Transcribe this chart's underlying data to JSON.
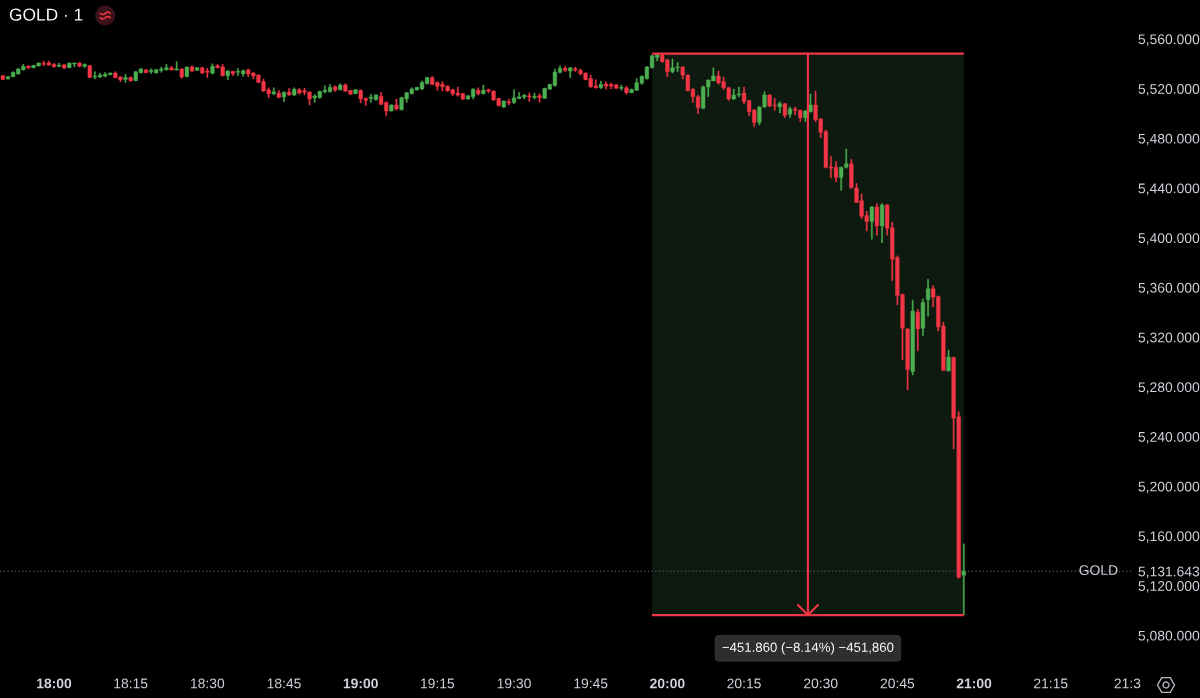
{
  "chart_data": {
    "type": "candlestick",
    "title": "GOLD · 1",
    "x": [
      17.8333,
      17.85,
      17.8667,
      17.8833,
      17.9,
      17.9167,
      17.9333,
      17.95,
      17.9667,
      17.9833,
      18,
      18.0167,
      18.0333,
      18.05,
      18.0667,
      18.0833,
      18.1,
      18.1167,
      18.1333,
      18.15,
      18.1667,
      18.1833,
      18.2,
      18.2167,
      18.2333,
      18.25,
      18.2667,
      18.2833,
      18.3,
      18.3167,
      18.3333,
      18.35,
      18.3667,
      18.3833,
      18.4,
      18.4167,
      18.4333,
      18.45,
      18.4667,
      18.4833,
      18.5,
      18.5167,
      18.5333,
      18.55,
      18.5667,
      18.5833,
      18.6,
      18.6167,
      18.6333,
      18.65,
      18.6667,
      18.6833,
      18.7,
      18.7167,
      18.7333,
      18.75,
      18.7667,
      18.7833,
      18.8,
      18.8167,
      18.8333,
      18.85,
      18.8667,
      18.8833,
      18.9,
      18.9167,
      18.9333,
      18.95,
      18.9667,
      18.9833,
      19,
      19.0167,
      19.0333,
      19.05,
      19.0667,
      19.0833,
      19.1,
      19.1167,
      19.1333,
      19.15,
      19.1667,
      19.1833,
      19.2,
      19.2167,
      19.2333,
      19.25,
      19.2667,
      19.2833,
      19.3,
      19.3167,
      19.3333,
      19.35,
      19.3667,
      19.3833,
      19.4,
      19.4167,
      19.4333,
      19.45,
      19.4667,
      19.4833,
      19.5,
      19.5167,
      19.5333,
      19.55,
      19.5667,
      19.5833,
      19.6,
      19.6167,
      19.6333,
      19.65,
      19.6667,
      19.6833,
      19.7,
      19.7167,
      19.7333,
      19.75,
      19.7667,
      19.7833,
      19.8,
      19.8167,
      19.8333,
      19.85,
      19.8667,
      19.8833,
      19.9,
      19.9167,
      19.9333,
      19.95,
      19.9667,
      19.9833,
      20,
      20.0167,
      20.0333,
      20.05,
      20.0667,
      20.0833,
      20.1,
      20.1167,
      20.1333,
      20.15,
      20.1667,
      20.1833,
      20.2,
      20.2167,
      20.2333,
      20.25,
      20.2667,
      20.2833,
      20.3,
      20.3167,
      20.3333,
      20.35,
      20.3667,
      20.3833,
      20.4,
      20.4167,
      20.4333,
      20.45,
      20.4667,
      20.4833,
      20.5,
      20.5167,
      20.5333,
      20.55,
      20.5667,
      20.5833,
      20.6,
      20.6167,
      20.6333,
      20.65,
      20.6667,
      20.6833,
      20.7,
      20.7167,
      20.7333,
      20.75,
      20.7667,
      20.7833,
      20.8,
      20.8167,
      20.8333,
      20.85,
      20.8667,
      20.8833,
      20.9,
      20.9167,
      20.9333,
      20.95,
      20.9667
    ],
    "ohlc": [
      [
        5530.5,
        5531.0,
        5527.0,
        5527.5
      ],
      [
        5528.1,
        5530.2,
        5527.5,
        5529.7
      ],
      [
        5529.7,
        5533.7,
        5529.4,
        5533.2
      ],
      [
        5531.8,
        5536.4,
        5531.6,
        5535.9
      ],
      [
        5535.3,
        5539.6,
        5534.8,
        5538.0
      ],
      [
        5538.3,
        5538.5,
        5535.9,
        5536.9
      ],
      [
        5536.9,
        5539.1,
        5536.7,
        5538.8
      ],
      [
        5538.3,
        5540.9,
        5538.0,
        5540.7
      ],
      [
        5540.4,
        5542.3,
        5538.5,
        5539.6
      ],
      [
        5540.9,
        5542.3,
        5538.5,
        5539.1
      ],
      [
        5539.6,
        5540.4,
        5537.2,
        5537.7
      ],
      [
        5538.0,
        5540.7,
        5537.5,
        5539.1
      ],
      [
        5539.3,
        5539.6,
        5535.9,
        5536.7
      ],
      [
        5536.9,
        5540.9,
        5536.7,
        5540.7
      ],
      [
        5539.9,
        5540.9,
        5537.5,
        5540.7
      ],
      [
        5540.7,
        5541.2,
        5537.5,
        5538.0
      ],
      [
        5538.0,
        5540.1,
        5536.9,
        5539.6
      ],
      [
        5538.5,
        5539.1,
        5528.9,
        5529.1
      ],
      [
        5529.4,
        5533.7,
        5527.8,
        5530.2
      ],
      [
        5529.4,
        5532.6,
        5528.9,
        5531.0
      ],
      [
        5530.0,
        5533.2,
        5529.4,
        5531.6
      ],
      [
        5531.3,
        5532.9,
        5531.0,
        5532.6
      ],
      [
        5532.6,
        5533.7,
        5528.6,
        5528.9
      ],
      [
        5529.4,
        5530.0,
        5525.7,
        5527.3
      ],
      [
        5527.5,
        5531.6,
        5525.1,
        5529.1
      ],
      [
        5529.1,
        5529.7,
        5525.7,
        5526.5
      ],
      [
        5526.5,
        5534.0,
        5526.2,
        5533.7
      ],
      [
        5532.9,
        5536.4,
        5532.4,
        5535.9
      ],
      [
        5535.3,
        5535.6,
        5532.6,
        5532.9
      ],
      [
        5533.7,
        5536.1,
        5532.1,
        5534.8
      ],
      [
        5532.6,
        5535.6,
        5532.4,
        5535.3
      ],
      [
        5534.8,
        5537.5,
        5533.2,
        5535.9
      ],
      [
        5535.3,
        5539.6,
        5534.8,
        5536.9
      ],
      [
        5536.9,
        5538.0,
        5534.8,
        5535.0
      ],
      [
        5535.0,
        5541.8,
        5534.8,
        5535.9
      ],
      [
        5535.9,
        5536.4,
        5528.3,
        5529.4
      ],
      [
        5529.7,
        5537.7,
        5529.4,
        5537.5
      ],
      [
        5537.5,
        5538.5,
        5533.7,
        5534.2
      ],
      [
        5534.8,
        5537.2,
        5534.5,
        5536.9
      ],
      [
        5536.9,
        5537.5,
        5532.1,
        5532.6
      ],
      [
        5534.2,
        5536.4,
        5528.9,
        5533.2
      ],
      [
        5532.4,
        5540.1,
        5531.8,
        5538.0
      ],
      [
        5538.5,
        5539.6,
        5536.4,
        5536.9
      ],
      [
        5537.5,
        5539.6,
        5530.0,
        5530.5
      ],
      [
        5530.5,
        5534.8,
        5527.3,
        5534.2
      ],
      [
        5534.0,
        5534.2,
        5530.5,
        5532.1
      ],
      [
        5533.2,
        5536.4,
        5530.5,
        5534.0
      ],
      [
        5532.1,
        5535.3,
        5530.0,
        5534.5
      ],
      [
        5535.3,
        5535.9,
        5529.7,
        5531.8
      ],
      [
        5532.6,
        5533.2,
        5527.8,
        5530.2
      ],
      [
        5531.0,
        5531.3,
        5524.9,
        5525.1
      ],
      [
        5525.7,
        5527.8,
        5517.6,
        5518.1
      ],
      [
        5519.2,
        5520.8,
        5512.8,
        5516.0
      ],
      [
        5516.0,
        5520.8,
        5514.9,
        5517.6
      ],
      [
        5516.5,
        5518.7,
        5512.5,
        5513.0
      ],
      [
        5513.3,
        5517.6,
        5509.6,
        5517.1
      ],
      [
        5517.3,
        5520.3,
        5514.4,
        5515.2
      ],
      [
        5514.9,
        5520.8,
        5514.4,
        5519.5
      ],
      [
        5519.2,
        5520.3,
        5515.5,
        5516.5
      ],
      [
        5518.4,
        5520.3,
        5514.9,
        5517.1
      ],
      [
        5517.3,
        5517.6,
        5506.9,
        5511.7
      ],
      [
        5512.8,
        5515.5,
        5509.0,
        5514.1
      ],
      [
        5513.0,
        5518.1,
        5512.2,
        5517.9
      ],
      [
        5517.6,
        5522.4,
        5516.5,
        5518.7
      ],
      [
        5517.6,
        5523.5,
        5517.1,
        5521.1
      ],
      [
        5521.6,
        5522.4,
        5517.6,
        5518.9
      ],
      [
        5519.2,
        5524.0,
        5518.7,
        5523.0
      ],
      [
        5523.0,
        5524.0,
        5517.6,
        5518.1
      ],
      [
        5518.7,
        5518.9,
        5515.2,
        5515.5
      ],
      [
        5516.0,
        5519.5,
        5515.7,
        5519.2
      ],
      [
        5518.7,
        5519.2,
        5508.5,
        5511.7
      ],
      [
        5512.2,
        5512.8,
        5506.4,
        5510.6
      ],
      [
        5512.2,
        5515.5,
        5509.0,
        5513.3
      ],
      [
        5511.2,
        5515.5,
        5510.6,
        5514.9
      ],
      [
        5513.9,
        5517.1,
        5506.9,
        5507.4
      ],
      [
        5509.0,
        5509.6,
        5498.3,
        5502.1
      ],
      [
        5502.1,
        5507.2,
        5501.8,
        5506.9
      ],
      [
        5506.9,
        5511.7,
        5502.6,
        5503.7
      ],
      [
        5503.1,
        5513.3,
        5502.6,
        5512.8
      ],
      [
        5511.7,
        5517.1,
        5509.0,
        5516.8
      ],
      [
        5516.0,
        5520.8,
        5515.5,
        5519.8
      ],
      [
        5518.9,
        5521.4,
        5518.7,
        5521.1
      ],
      [
        5519.8,
        5526.2,
        5519.2,
        5525.1
      ],
      [
        5524.0,
        5529.4,
        5523.8,
        5529.1
      ],
      [
        5528.9,
        5530.0,
        5523.0,
        5523.5
      ],
      [
        5525.1,
        5525.7,
        5518.7,
        5521.9
      ],
      [
        5523.5,
        5525.7,
        5518.1,
        5521.6
      ],
      [
        5522.2,
        5522.4,
        5517.9,
        5518.1
      ],
      [
        5519.2,
        5519.8,
        5514.4,
        5516.0
      ],
      [
        5516.5,
        5521.4,
        5513.9,
        5514.9
      ],
      [
        5516.0,
        5516.5,
        5511.2,
        5511.7
      ],
      [
        5511.7,
        5514.7,
        5511.4,
        5514.4
      ],
      [
        5513.6,
        5520.3,
        5511.7,
        5519.5
      ],
      [
        5518.7,
        5520.8,
        5514.9,
        5516.0
      ],
      [
        5516.0,
        5523.0,
        5515.5,
        5518.7
      ],
      [
        5519.2,
        5519.8,
        5516.5,
        5518.1
      ],
      [
        5518.1,
        5518.4,
        5510.6,
        5510.9
      ],
      [
        5512.2,
        5512.5,
        5505.8,
        5506.4
      ],
      [
        5505.3,
        5510.4,
        5504.7,
        5510.1
      ],
      [
        5509.6,
        5511.7,
        5506.9,
        5508.5
      ],
      [
        5509.0,
        5519.2,
        5508.0,
        5512.8
      ],
      [
        5512.2,
        5517.1,
        5511.7,
        5513.6
      ],
      [
        5513.3,
        5515.5,
        5511.7,
        5514.7
      ],
      [
        5514.4,
        5516.8,
        5509.6,
        5513.3
      ],
      [
        5513.0,
        5516.5,
        5511.7,
        5513.9
      ],
      [
        5514.4,
        5516.0,
        5509.0,
        5512.8
      ],
      [
        5512.2,
        5520.6,
        5512.0,
        5520.3
      ],
      [
        5519.5,
        5523.8,
        5519.2,
        5523.5
      ],
      [
        5522.4,
        5535.9,
        5521.9,
        5533.4
      ],
      [
        5533.2,
        5538.5,
        5532.4,
        5536.4
      ],
      [
        5536.4,
        5538.0,
        5533.7,
        5534.8
      ],
      [
        5534.2,
        5537.2,
        5528.9,
        5536.9
      ],
      [
        5536.1,
        5537.5,
        5533.7,
        5535.0
      ],
      [
        5534.8,
        5535.9,
        5531.0,
        5532.1
      ],
      [
        5532.6,
        5532.9,
        5527.0,
        5527.3
      ],
      [
        5528.3,
        5531.0,
        5520.8,
        5521.6
      ],
      [
        5522.2,
        5527.3,
        5520.3,
        5520.8
      ],
      [
        5520.8,
        5526.2,
        5520.0,
        5523.5
      ],
      [
        5523.8,
        5525.7,
        5519.5,
        5521.9
      ],
      [
        5523.5,
        5524.6,
        5519.8,
        5521.9
      ],
      [
        5523.2,
        5523.5,
        5520.0,
        5520.3
      ],
      [
        5520.3,
        5523.0,
        5518.7,
        5521.1
      ],
      [
        5520.8,
        5521.9,
        5515.5,
        5516.8
      ],
      [
        5516.8,
        5519.8,
        5516.5,
        5519.5
      ],
      [
        5518.7,
        5528.3,
        5518.4,
        5524.9
      ],
      [
        5524.3,
        5530.5,
        5523.5,
        5530.0
      ],
      [
        5528.3,
        5538.0,
        5527.5,
        5537.5
      ],
      [
        5536.9,
        5547.1,
        5536.4,
        5546.6
      ],
      [
        5545.2,
        5548.3,
        5542.3,
        5547.9
      ],
      [
        5547.1,
        5547.7,
        5541.2,
        5541.8
      ],
      [
        5543.1,
        5543.9,
        5529.7,
        5533.7
      ],
      [
        5533.7,
        5543.9,
        5532.6,
        5536.9
      ],
      [
        5536.9,
        5541.2,
        5533.7,
        5537.5
      ],
      [
        5537.5,
        5538.0,
        5527.8,
        5531.0
      ],
      [
        5531.0,
        5531.3,
        5518.1,
        5518.4
      ],
      [
        5519.5,
        5520.3,
        5509.0,
        5513.6
      ],
      [
        5513.6,
        5514.9,
        5499.9,
        5504.7
      ],
      [
        5504.2,
        5522.4,
        5503.7,
        5521.4
      ],
      [
        5521.4,
        5527.3,
        5513.6,
        5527.0
      ],
      [
        5526.2,
        5536.9,
        5526.2,
        5530.2
      ],
      [
        5530.2,
        5534.2,
        5523.5,
        5524.9
      ],
      [
        5525.7,
        5529.4,
        5519.2,
        5520.8
      ],
      [
        5520.8,
        5521.4,
        5510.6,
        5511.7
      ],
      [
        5511.7,
        5519.8,
        5511.2,
        5514.9
      ],
      [
        5514.9,
        5521.4,
        5513.3,
        5515.7
      ],
      [
        5516.5,
        5521.4,
        5508.0,
        5509.6
      ],
      [
        5510.4,
        5510.9,
        5498.3,
        5501.5
      ],
      [
        5502.9,
        5503.4,
        5489.4,
        5492.9
      ],
      [
        5492.9,
        5505.8,
        5490.8,
        5505.3
      ],
      [
        5505.3,
        5517.6,
        5504.7,
        5514.9
      ],
      [
        5514.9,
        5515.5,
        5505.3,
        5506.1
      ],
      [
        5506.9,
        5512.2,
        5502.6,
        5506.4
      ],
      [
        5505.3,
        5509.6,
        5500.4,
        5508.2
      ],
      [
        5508.0,
        5508.5,
        5496.7,
        5498.6
      ],
      [
        5499.4,
        5505.3,
        5496.7,
        5503.7
      ],
      [
        5503.7,
        5505.3,
        5498.8,
        5502.6
      ],
      [
        5502.6,
        5503.1,
        5493.5,
        5496.7
      ],
      [
        5496.7,
        5502.6,
        5493.5,
        5502.1
      ],
      [
        5501.5,
        5515.7,
        5501.0,
        5506.9
      ],
      [
        5506.9,
        5518.1,
        5493.5,
        5495.1
      ],
      [
        5495.6,
        5496.1,
        5480.6,
        5484.9
      ],
      [
        5485.4,
        5486.8,
        5456.2,
        5456.8
      ],
      [
        5457.1,
        5465.4,
        5448.2,
        5456.0
      ],
      [
        5456.8,
        5461.5,
        5444.9,
        5448.5
      ],
      [
        5448.5,
        5457.1,
        5438.2,
        5456.8
      ],
      [
        5456.8,
        5471.5,
        5456.0,
        5459.6
      ],
      [
        5459.6,
        5463.2,
        5439.6,
        5440.4
      ],
      [
        5440.1,
        5443.7,
        5428.2,
        5428.5
      ],
      [
        5429.9,
        5435.4,
        5415.4,
        5417.4
      ],
      [
        5417.9,
        5421.5,
        5405.4,
        5413.2
      ],
      [
        5413.2,
        5425.4,
        5398.8,
        5424.9
      ],
      [
        5424.9,
        5427.6,
        5402.1,
        5409.6
      ],
      [
        5409.6,
        5427.6,
        5396.0,
        5426.5
      ],
      [
        5426.5,
        5427.1,
        5402.1,
        5407.7
      ],
      [
        5408.2,
        5412.7,
        5365.5,
        5382.7
      ],
      [
        5384.1,
        5385.5,
        5346.1,
        5353.5
      ],
      [
        5354.4,
        5354.9,
        5301.6,
        5327.2
      ],
      [
        5326.6,
        5327.2,
        5277.8,
        5293.9
      ],
      [
        5292.5,
        5349.9,
        5289.7,
        5341.1
      ],
      [
        5340.2,
        5342.4,
        5309.1,
        5326.6
      ],
      [
        5327.2,
        5350.8,
        5321.1,
        5348.0
      ],
      [
        5350.2,
        5366.6,
        5336.9,
        5359.1
      ],
      [
        5359.1,
        5361.6,
        5344.4,
        5352.2
      ],
      [
        5352.7,
        5353.3,
        5325.0,
        5328.3
      ],
      [
        5329.1,
        5332.2,
        5293.0,
        5293.3
      ],
      [
        5293.0,
        5309.7,
        5292.5,
        5304.1
      ],
      [
        5303.6,
        5304.1,
        5230.0,
        5255.0
      ],
      [
        5255.9,
        5260.0,
        5126.0,
        5126.8
      ],
      [
        5128.5,
        5153.7,
        5096.4,
        5131.643
      ]
    ],
    "colors": [
      "#f23645",
      "#4caf50",
      "#4caf50",
      "#4caf50",
      "#4caf50",
      "#f23645",
      "#4caf50",
      "#4caf50",
      "#f23645",
      "#f23645",
      "#f23645",
      "#4caf50",
      "#f23645",
      "#4caf50",
      "#4caf50",
      "#f23645",
      "#4caf50",
      "#f23645",
      "#4caf50",
      "#4caf50",
      "#4caf50",
      "#4caf50",
      "#f23645",
      "#f23645",
      "#4caf50",
      "#f23645",
      "#4caf50",
      "#4caf50",
      "#f23645",
      "#4caf50",
      "#4caf50",
      "#4caf50",
      "#4caf50",
      "#f23645",
      "#4caf50",
      "#f23645",
      "#4caf50",
      "#f23645",
      "#4caf50",
      "#f23645",
      "#f23645",
      "#4caf50",
      "#f23645",
      "#f23645",
      "#4caf50",
      "#f23645",
      "#4caf50",
      "#4caf50",
      "#f23645",
      "#f23645",
      "#f23645",
      "#f23645",
      "#f23645",
      "#4caf50",
      "#f23645",
      "#4caf50",
      "#f23645",
      "#4caf50",
      "#f23645",
      "#f23645",
      "#f23645",
      "#4caf50",
      "#4caf50",
      "#4caf50",
      "#4caf50",
      "#f23645",
      "#4caf50",
      "#f23645",
      "#f23645",
      "#4caf50",
      "#f23645",
      "#f23645",
      "#4caf50",
      "#4caf50",
      "#f23645",
      "#f23645",
      "#4caf50",
      "#f23645",
      "#4caf50",
      "#4caf50",
      "#4caf50",
      "#4caf50",
      "#4caf50",
      "#4caf50",
      "#f23645",
      "#f23645",
      "#f23645",
      "#f23645",
      "#f23645",
      "#f23645",
      "#f23645",
      "#4caf50",
      "#4caf50",
      "#f23645",
      "#4caf50",
      "#f23645",
      "#f23645",
      "#f23645",
      "#4caf50",
      "#f23645",
      "#4caf50",
      "#4caf50",
      "#4caf50",
      "#f23645",
      "#4caf50",
      "#f23645",
      "#4caf50",
      "#4caf50",
      "#4caf50",
      "#4caf50",
      "#f23645",
      "#4caf50",
      "#f23645",
      "#f23645",
      "#f23645",
      "#f23645",
      "#f23645",
      "#4caf50",
      "#f23645",
      "#f23645",
      "#f23645",
      "#4caf50",
      "#f23645",
      "#4caf50",
      "#4caf50",
      "#4caf50",
      "#4caf50",
      "#4caf50",
      "#4caf50",
      "#f23645",
      "#f23645",
      "#4caf50",
      "#4caf50",
      "#f23645",
      "#f23645",
      "#f23645",
      "#f23645",
      "#4caf50",
      "#4caf50",
      "#4caf50",
      "#f23645",
      "#f23645",
      "#f23645",
      "#4caf50",
      "#4caf50",
      "#f23645",
      "#f23645",
      "#f23645",
      "#4caf50",
      "#4caf50",
      "#f23645",
      "#f23645",
      "#4caf50",
      "#f23645",
      "#4caf50",
      "#f23645",
      "#f23645",
      "#4caf50",
      "#4caf50",
      "#f23645",
      "#f23645",
      "#f23645",
      "#f23645",
      "#f23645",
      "#4caf50",
      "#4caf50",
      "#f23645",
      "#f23645",
      "#f23645",
      "#f23645",
      "#4caf50",
      "#f23645",
      "#4caf50",
      "#f23645",
      "#f23645",
      "#f23645",
      "#f23645",
      "#f23645",
      "#4caf50",
      "#f23645",
      "#4caf50",
      "#4caf50",
      "#f23645",
      "#f23645",
      "#f23645",
      "#4caf50",
      "#f23645",
      "#f23645",
      "#4caf50"
    ],
    "xlim": [
      17.824,
      21.515
    ],
    "xticks": [
      {
        "value": 18,
        "label": "18:00"
      },
      {
        "value": 18.25,
        "label": "18:15"
      },
      {
        "value": 18.5,
        "label": "18:30"
      },
      {
        "value": 18.75,
        "label": "18:45"
      },
      {
        "value": 19,
        "label": "19:00"
      },
      {
        "value": 19.25,
        "label": "19:15"
      },
      {
        "value": 19.5,
        "label": "19:30"
      },
      {
        "value": 19.75,
        "label": "19:45"
      },
      {
        "value": 20,
        "label": "20:00"
      },
      {
        "value": 20.25,
        "label": "20:15"
      },
      {
        "value": 20.5,
        "label": "20:30"
      },
      {
        "value": 20.75,
        "label": "20:45"
      },
      {
        "value": 21,
        "label": "21:00"
      },
      {
        "value": 21.25,
        "label": "21:15"
      },
      {
        "value": 21.5,
        "label": "21:3"
      }
    ],
    "ylim": [
      5054.6,
      5591.4
    ],
    "yticks": [
      {
        "value": 5080,
        "label": "5,080.000"
      },
      {
        "value": 5120,
        "label": "5,120.000"
      },
      {
        "value": 5160,
        "label": "5,160.000"
      },
      {
        "value": 5200,
        "label": "5,200.000"
      },
      {
        "value": 5240,
        "label": "5,240.000"
      },
      {
        "value": 5280,
        "label": "5,280.000"
      },
      {
        "value": 5320,
        "label": "5,320.000"
      },
      {
        "value": 5360,
        "label": "5,360.000"
      },
      {
        "value": 5400,
        "label": "5,400.000"
      },
      {
        "value": 5440,
        "label": "5,440.000"
      },
      {
        "value": 5480,
        "label": "5,480.000"
      },
      {
        "value": 5520,
        "label": "5,520.000"
      },
      {
        "value": 5560,
        "label": "5,560.000"
      },
      {
        "value": 5131.643,
        "label": "5,131.643"
      }
    ],
    "bands": [
      {
        "axis": "x",
        "from": 19.95,
        "to": 20.9667,
        "color": "#0e1a10"
      }
    ],
    "ref_lines": [
      {
        "axis": "y",
        "value": 5548.3,
        "color": "#f23645"
      },
      {
        "axis": "y",
        "value": 5096.4,
        "color": "#f23645"
      },
      {
        "axis": "x",
        "value": 20.4583,
        "color": "#f23645"
      },
      {
        "axis": "y",
        "value": 5131.643,
        "label": "GOLD",
        "color": "#434651",
        "line_style": "dotted"
      }
    ],
    "annotations": [
      {
        "text": "−451.860 (−8.14%) −451,860",
        "x": 20.4583,
        "y": 5096.4
      }
    ]
  }
}
